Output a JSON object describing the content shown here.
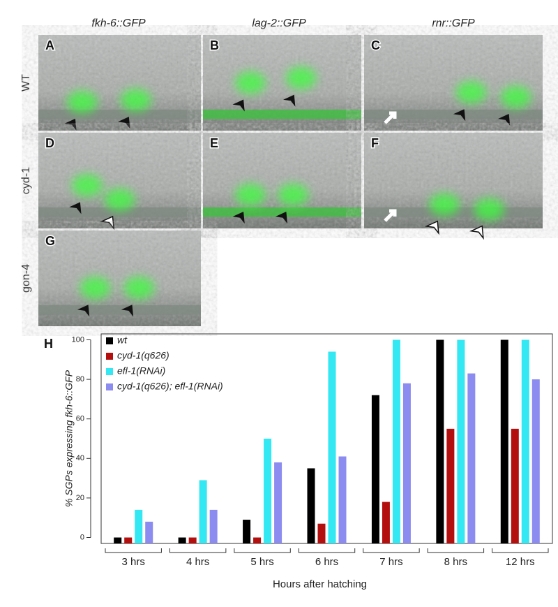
{
  "panels": {
    "column_headers": [
      "fkh-6::GFP",
      "lag-2::GFP",
      "rnr::GFP"
    ],
    "row_labels": [
      "WT",
      "cyd-1",
      "gon-4"
    ],
    "letters": [
      "A",
      "B",
      "C",
      "D",
      "E",
      "F",
      "G"
    ]
  },
  "chart_data": {
    "type": "bar",
    "panel_label": "H",
    "x_label": "Hours after hatching",
    "y_label": "% SGPs expressing fkh-6::GFP",
    "categories": [
      "3 hrs",
      "4 hrs",
      "5 hrs",
      "6 hrs",
      "7 hrs",
      "8 hrs",
      "12 hrs"
    ],
    "series": [
      {
        "name": "wt",
        "color": "#000000",
        "values": [
          0,
          0,
          9,
          35,
          72,
          100,
          100
        ]
      },
      {
        "name": "cyd-1(q626)",
        "color": "#b30f0f",
        "values": [
          0,
          0,
          0,
          7,
          18,
          55,
          55
        ]
      },
      {
        "name": "efl-1(RNAi)",
        "color": "#33e8f2",
        "values": [
          14,
          29,
          50,
          94,
          100,
          100,
          100
        ]
      },
      {
        "name": "cyd-1(q626); efl-1(RNAi)",
        "color": "#8c8cf0",
        "values": [
          8,
          14,
          38,
          41,
          78,
          83,
          80
        ]
      }
    ],
    "ylim": [
      -3,
      103
    ],
    "yticks": [
      0,
      20,
      40,
      60,
      80,
      100
    ],
    "legend": "upper-left"
  }
}
